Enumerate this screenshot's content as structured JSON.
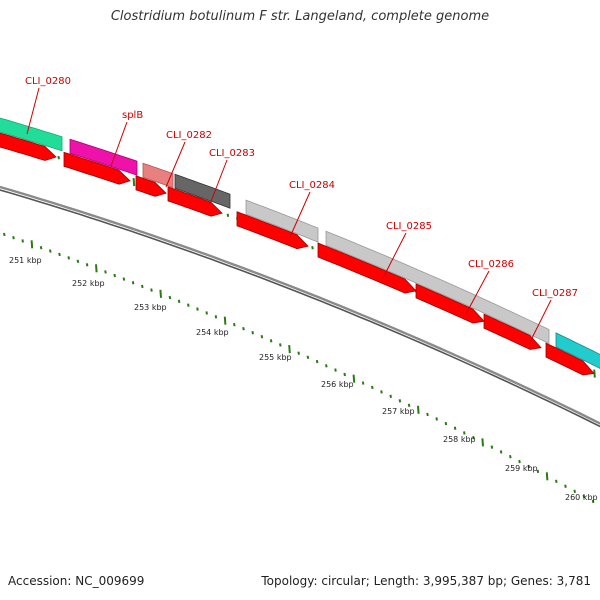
{
  "title": "Clostridium botulinum F str. Langeland, complete genome",
  "accession": "Accession: NC_009699",
  "stats": "Topology: circular; Length: 3,995,387 bp; Genes: 3,781",
  "scale_labels": [
    "251 kbp",
    "252 kbp",
    "253 kbp",
    "254 kbp",
    "255 kbp",
    "256 kbp",
    "257 kbp",
    "258 kbp",
    "259 kbp",
    "260 kbp"
  ],
  "colors": {
    "cds_red": "#ff0000",
    "gene_label": "#cc0000",
    "tick_green": "#2a7a16",
    "backbone": "#777777"
  },
  "features": [
    {
      "label": "CLI_0280",
      "color": "#22dd99"
    },
    {
      "label": "splB",
      "color": "#ee11aa"
    },
    {
      "label": "CLI_0282",
      "color": "#e98080"
    },
    {
      "label": "CLI_0283",
      "color": "#666666"
    },
    {
      "label": "CLI_0284",
      "color": "#c8c8c8"
    },
    {
      "label": "CLI_0285",
      "color": "#c8c8c8"
    },
    {
      "label": "CLI_0286",
      "color": "#c8c8c8"
    },
    {
      "label": "CLI_0287",
      "color": "#22cccc"
    }
  ]
}
